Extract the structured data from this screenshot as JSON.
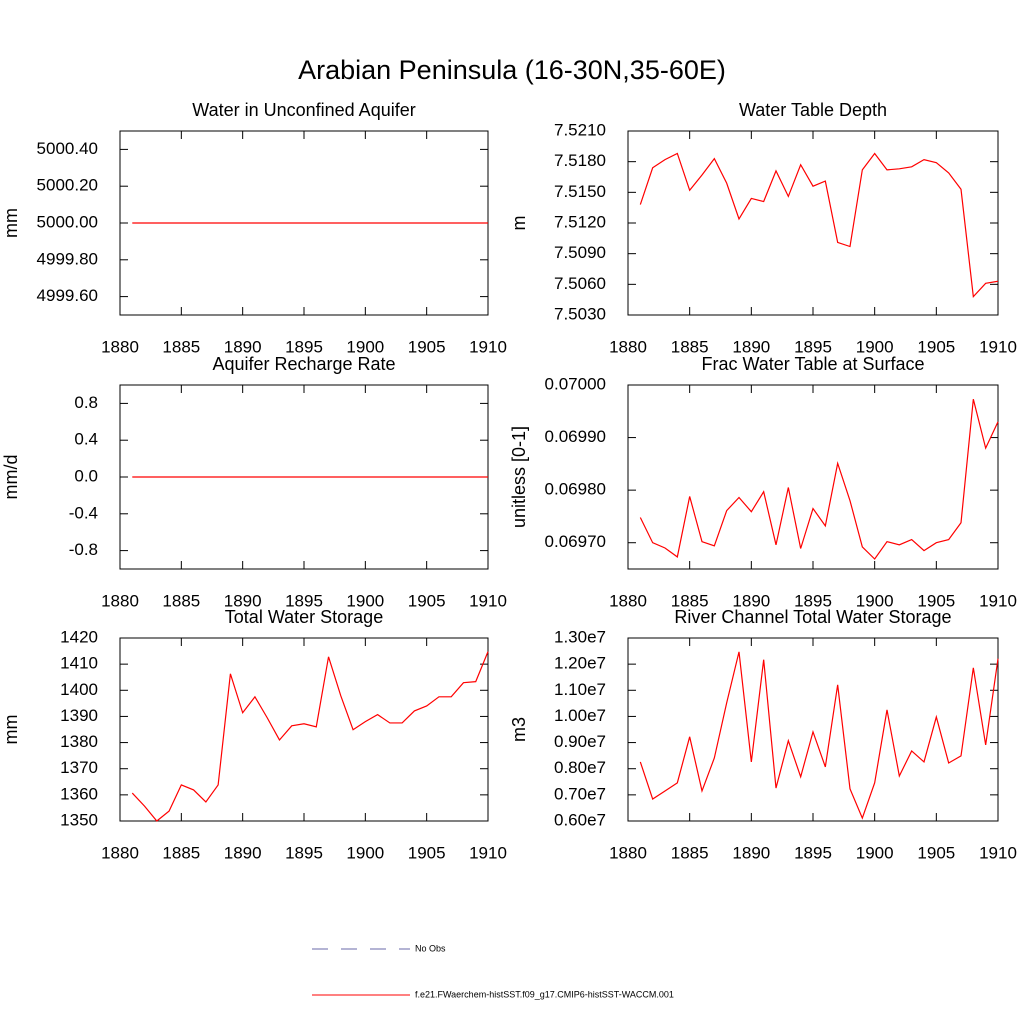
{
  "title": "Arabian Peninsula (16-30N,35-60E)",
  "legend": [
    {
      "name": "No Obs",
      "color": "#6a6aa8",
      "dash": true
    },
    {
      "name": "f.e21.FWaerchem-histSST.f09_g17.CMIP6-histSST-WACCM.001",
      "color": "#ff0000",
      "dash": false
    }
  ],
  "chart_data": [
    {
      "type": "line",
      "title": "Water in Unconfined Aquifer",
      "ylabel": "mm",
      "color": "#ff0000",
      "x": [
        1881,
        1882,
        1883,
        1884,
        1885,
        1886,
        1887,
        1888,
        1889,
        1890,
        1891,
        1892,
        1893,
        1894,
        1895,
        1896,
        1897,
        1898,
        1899,
        1900,
        1901,
        1902,
        1903,
        1904,
        1905,
        1906,
        1907,
        1908,
        1909,
        1910
      ],
      "values": [
        5000.0,
        5000.0,
        5000.0,
        5000.0,
        5000.0,
        5000.0,
        5000.0,
        5000.0,
        5000.0,
        5000.0,
        5000.0,
        5000.0,
        5000.0,
        5000.0,
        5000.0,
        5000.0,
        5000.0,
        5000.0,
        5000.0,
        5000.0,
        5000.0,
        5000.0,
        5000.0,
        5000.0,
        5000.0,
        5000.0,
        5000.0,
        5000.0,
        5000.0,
        5000.0
      ],
      "xlim": [
        1880,
        1910
      ],
      "xticks": [
        1880,
        1885,
        1890,
        1895,
        1900,
        1905,
        1910
      ],
      "ylim": [
        4999.5,
        5000.5
      ],
      "yticks": [
        {
          "value": 4999.6,
          "label": "4999.60"
        },
        {
          "value": 4999.8,
          "label": "4999.80"
        },
        {
          "value": 5000.0,
          "label": "5000.00"
        },
        {
          "value": 5000.2,
          "label": "5000.20"
        },
        {
          "value": 5000.4,
          "label": "5000.40"
        }
      ]
    },
    {
      "type": "line",
      "title": "Water Table Depth",
      "ylabel": "m",
      "color": "#ff0000",
      "x": [
        1881,
        1882,
        1883,
        1884,
        1885,
        1886,
        1887,
        1888,
        1889,
        1890,
        1891,
        1892,
        1893,
        1894,
        1895,
        1896,
        1897,
        1898,
        1899,
        1900,
        1901,
        1902,
        1903,
        1904,
        1905,
        1906,
        1907,
        1908,
        1909,
        1910
      ],
      "values": [
        7.5138,
        7.5174,
        7.5182,
        7.5188,
        7.5152,
        7.5167,
        7.5183,
        7.5159,
        7.5124,
        7.5144,
        7.5141,
        7.5171,
        7.5146,
        7.5177,
        7.5156,
        7.5161,
        7.5101,
        7.5097,
        7.5172,
        7.5188,
        7.5172,
        7.5173,
        7.5175,
        7.5182,
        7.5179,
        7.5169,
        7.5153,
        7.5048,
        7.5061,
        7.5063
      ],
      "xlim": [
        1880,
        1910
      ],
      "xticks": [
        1880,
        1885,
        1890,
        1895,
        1900,
        1905,
        1910
      ],
      "ylim": [
        7.503,
        7.521
      ],
      "yticks": [
        {
          "value": 7.503,
          "label": "7.5030"
        },
        {
          "value": 7.506,
          "label": "7.5060"
        },
        {
          "value": 7.509,
          "label": "7.5090"
        },
        {
          "value": 7.512,
          "label": "7.5120"
        },
        {
          "value": 7.515,
          "label": "7.5150"
        },
        {
          "value": 7.518,
          "label": "7.5180"
        },
        {
          "value": 7.521,
          "label": "7.5210"
        }
      ]
    },
    {
      "type": "line",
      "title": "Aquifer Recharge Rate",
      "ylabel": "mm/d",
      "color": "#ff0000",
      "x": [
        1881,
        1882,
        1883,
        1884,
        1885,
        1886,
        1887,
        1888,
        1889,
        1890,
        1891,
        1892,
        1893,
        1894,
        1895,
        1896,
        1897,
        1898,
        1899,
        1900,
        1901,
        1902,
        1903,
        1904,
        1905,
        1906,
        1907,
        1908,
        1909,
        1910
      ],
      "values": [
        0,
        0,
        0,
        0,
        0,
        0,
        0,
        0,
        0,
        0,
        0,
        0,
        0,
        0,
        0,
        0,
        0,
        0,
        0,
        0,
        0,
        0,
        0,
        0,
        0,
        0,
        0,
        0,
        0,
        0
      ],
      "xlim": [
        1880,
        1910
      ],
      "xticks": [
        1880,
        1885,
        1890,
        1895,
        1900,
        1905,
        1910
      ],
      "ylim": [
        -1.0,
        1.0
      ],
      "yticks": [
        -0.8,
        -0.4,
        {
          "value": 0,
          "label": "0.0"
        },
        0.4,
        0.8
      ]
    },
    {
      "type": "line",
      "title": "Frac Water Table at Surface",
      "ylabel": "unitless [0-1]",
      "color": "#ff0000",
      "x": [
        1881,
        1882,
        1883,
        1884,
        1885,
        1886,
        1887,
        1888,
        1889,
        1890,
        1891,
        1892,
        1893,
        1894,
        1895,
        1896,
        1897,
        1898,
        1899,
        1900,
        1901,
        1902,
        1903,
        1904,
        1905,
        1906,
        1907,
        1908,
        1909,
        1910
      ],
      "values": [
        0.069748,
        0.0697,
        0.06969,
        0.069673,
        0.069788,
        0.069702,
        0.069694,
        0.069761,
        0.069786,
        0.069759,
        0.069797,
        0.069696,
        0.069805,
        0.069689,
        0.069765,
        0.069732,
        0.069851,
        0.06978,
        0.069692,
        0.069669,
        0.069702,
        0.069696,
        0.069706,
        0.069685,
        0.0697,
        0.069706,
        0.069738,
        0.069973,
        0.06988,
        0.06993
      ],
      "xlim": [
        1880,
        1910
      ],
      "xticks": [
        1880,
        1885,
        1890,
        1895,
        1900,
        1905,
        1910
      ],
      "ylim": [
        0.06965,
        0.07
      ],
      "yticks": [
        {
          "value": 0.0697,
          "label": "0.06970"
        },
        {
          "value": 0.0698,
          "label": "0.06980"
        },
        {
          "value": 0.0699,
          "label": "0.06990"
        },
        {
          "value": 0.07,
          "label": "0.07000"
        }
      ]
    },
    {
      "type": "line",
      "title": "Total Water Storage",
      "ylabel": "mm",
      "color": "#ff0000",
      "x": [
        1881,
        1882,
        1883,
        1884,
        1885,
        1886,
        1887,
        1888,
        1889,
        1890,
        1891,
        1892,
        1893,
        1894,
        1895,
        1896,
        1897,
        1898,
        1899,
        1900,
        1901,
        1902,
        1903,
        1904,
        1905,
        1906,
        1907,
        1908,
        1909,
        1910
      ],
      "values": [
        1360.7,
        1355.7,
        1350,
        1353.8,
        1363.8,
        1361.9,
        1357.3,
        1363.8,
        1406.3,
        1391.4,
        1397.5,
        1389.5,
        1381,
        1386.4,
        1387.2,
        1386,
        1412.8,
        1397.9,
        1384.9,
        1388,
        1390.7,
        1387.5,
        1387.5,
        1392.1,
        1394,
        1397.5,
        1397.5,
        1402.9,
        1403.3,
        1414.8
      ],
      "xlim": [
        1880,
        1910
      ],
      "xticks": [
        1880,
        1885,
        1890,
        1895,
        1900,
        1905,
        1910
      ],
      "ylim": [
        1350,
        1420
      ],
      "yticks": [
        1350,
        1360,
        1370,
        1380,
        1390,
        1400,
        1410,
        1420
      ]
    },
    {
      "type": "line",
      "title": "River Channel Total Water Storage",
      "ylabel": "m3",
      "color": "#ff0000",
      "x": [
        1881,
        1882,
        1883,
        1884,
        1885,
        1886,
        1887,
        1888,
        1889,
        1890,
        1891,
        1892,
        1893,
        1894,
        1895,
        1896,
        1897,
        1898,
        1899,
        1900,
        1901,
        1902,
        1903,
        1904,
        1905,
        1906,
        1907,
        1908,
        1909,
        1910
      ],
      "values": [
        8260000,
        6840000,
        7150000,
        7460000,
        9220000,
        7150000,
        8410000,
        10520000,
        12470000,
        8260000,
        12170000,
        7260000,
        9070000,
        7690000,
        9410000,
        8070000,
        11210000,
        7230000,
        6110000,
        7460000,
        10250000,
        7720000,
        8680000,
        8260000,
        9980000,
        8220000,
        8490000,
        11860000,
        8910000,
        12210000
      ],
      "xlim": [
        1880,
        1910
      ],
      "xticks": [
        1880,
        1885,
        1890,
        1895,
        1900,
        1905,
        1910
      ],
      "ylim": [
        6000000,
        13000000
      ],
      "yticks": [
        {
          "value": 6000000,
          "label": "0.60e7"
        },
        {
          "value": 7000000,
          "label": "0.70e7"
        },
        {
          "value": 8000000,
          "label": "0.80e7"
        },
        {
          "value": 9000000,
          "label": "0.90e7"
        },
        {
          "value": 10000000,
          "label": "1.00e7"
        },
        {
          "value": 11000000,
          "label": "1.10e7"
        },
        {
          "value": 12000000,
          "label": "1.20e7"
        },
        {
          "value": 13000000,
          "label": "1.30e7"
        }
      ]
    }
  ]
}
